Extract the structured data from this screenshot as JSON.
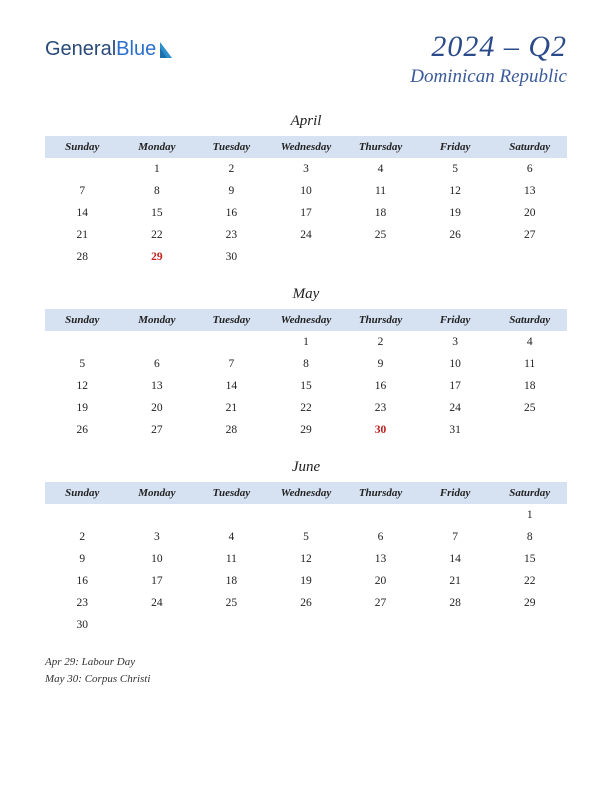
{
  "logo": {
    "part1": "General",
    "part2": "Blue"
  },
  "header": {
    "quarter": "2024 – Q2",
    "country": "Dominican Republic"
  },
  "day_headers": [
    "Sunday",
    "Monday",
    "Tuesday",
    "Wednesday",
    "Thursday",
    "Friday",
    "Saturday"
  ],
  "months": [
    {
      "name": "April",
      "weeks": [
        [
          "",
          "1",
          "2",
          "3",
          "4",
          "5",
          "6"
        ],
        [
          "7",
          "8",
          "9",
          "10",
          "11",
          "12",
          "13"
        ],
        [
          "14",
          "15",
          "16",
          "17",
          "18",
          "19",
          "20"
        ],
        [
          "21",
          "22",
          "23",
          "24",
          "25",
          "26",
          "27"
        ],
        [
          "28",
          "29",
          "30",
          "",
          "",
          "",
          ""
        ]
      ],
      "holidays": [
        "29"
      ]
    },
    {
      "name": "May",
      "weeks": [
        [
          "",
          "",
          "",
          "1",
          "2",
          "3",
          "4"
        ],
        [
          "5",
          "6",
          "7",
          "8",
          "9",
          "10",
          "11"
        ],
        [
          "12",
          "13",
          "14",
          "15",
          "16",
          "17",
          "18"
        ],
        [
          "19",
          "20",
          "21",
          "22",
          "23",
          "24",
          "25"
        ],
        [
          "26",
          "27",
          "28",
          "29",
          "30",
          "31",
          ""
        ]
      ],
      "holidays": [
        "30"
      ]
    },
    {
      "name": "June",
      "weeks": [
        [
          "",
          "",
          "",
          "",
          "",
          "",
          "1"
        ],
        [
          "2",
          "3",
          "4",
          "5",
          "6",
          "7",
          "8"
        ],
        [
          "9",
          "10",
          "11",
          "12",
          "13",
          "14",
          "15"
        ],
        [
          "16",
          "17",
          "18",
          "19",
          "20",
          "21",
          "22"
        ],
        [
          "23",
          "24",
          "25",
          "26",
          "27",
          "28",
          "29"
        ],
        [
          "30",
          "",
          "",
          "",
          "",
          "",
          ""
        ]
      ],
      "holidays": []
    }
  ],
  "notes": [
    "Apr 29: Labour Day",
    "May 30: Corpus Christi"
  ],
  "colors": {
    "header_bg": "#d6e2f2",
    "title_color": "#2a4a8a",
    "holiday_color": "#c02020",
    "logo_blue": "#2a6fcc",
    "background": "#ffffff"
  }
}
